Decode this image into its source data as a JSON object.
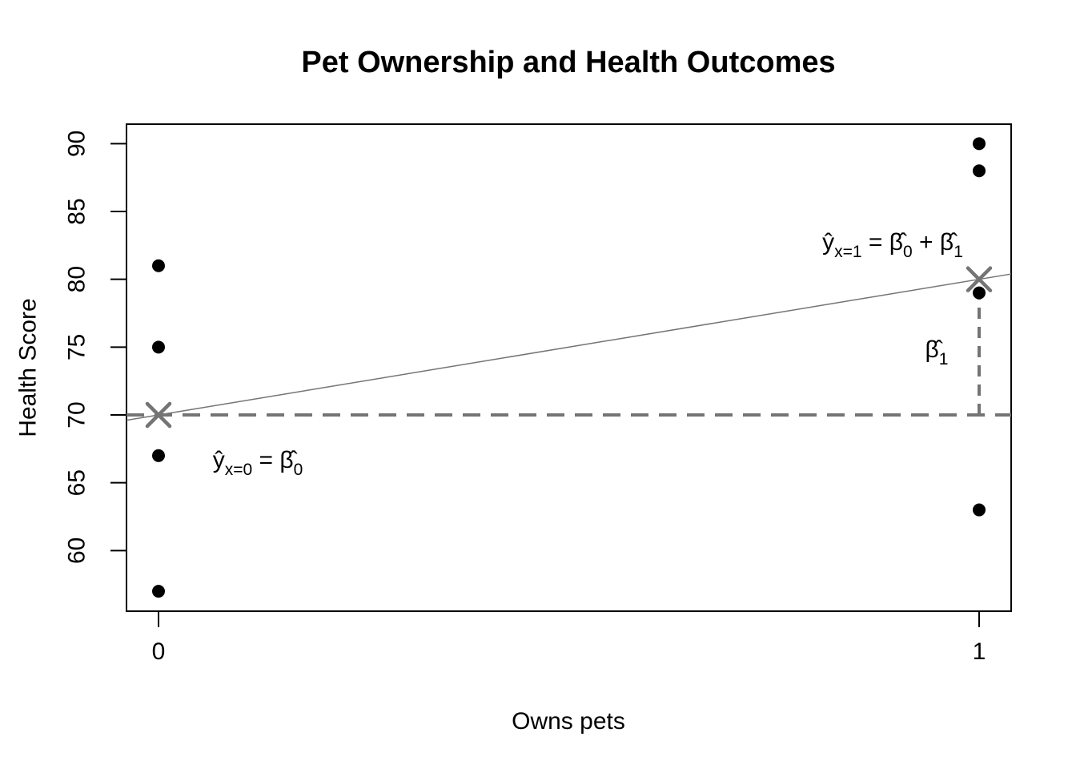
{
  "title": "Pet Ownership and Health Outcomes",
  "axes": {
    "x_label": "Owns pets",
    "y_label": "Health Score"
  },
  "chart_data": {
    "type": "scatter",
    "title": "Pet Ownership and Health Outcomes",
    "xlabel": "Owns pets",
    "ylabel": "Health Score",
    "xlim": [
      -0.04,
      1.04
    ],
    "ylim": [
      55.5,
      91.4
    ],
    "x_ticks": [
      0,
      1
    ],
    "y_ticks": [
      60,
      65,
      70,
      75,
      80,
      85,
      90
    ],
    "grid": "off",
    "points": [
      {
        "x": 0,
        "y": 81
      },
      {
        "x": 0,
        "y": 75
      },
      {
        "x": 0,
        "y": 67
      },
      {
        "x": 0,
        "y": 57
      },
      {
        "x": 1,
        "y": 90
      },
      {
        "x": 1,
        "y": 88
      },
      {
        "x": 1,
        "y": 79
      },
      {
        "x": 1,
        "y": 63
      }
    ],
    "group_means": [
      {
        "x": 0,
        "y": 70
      },
      {
        "x": 1,
        "y": 80
      }
    ],
    "fit_line": {
      "intercept": 70,
      "slope": 10
    },
    "reference_lines": {
      "horizontal_dashed": {
        "y": 70
      },
      "vertical_dashed": {
        "x": 1,
        "from": 70,
        "to": 80
      }
    },
    "colors": {
      "points": "#000000",
      "gray": "#747474",
      "axis": "#000000"
    }
  },
  "annotations": {
    "mean0": {
      "lhs": "ŷ",
      "lhs_sub": "x=0",
      "eq": " = ",
      "rhs": "β̂",
      "rhs_sub": "0"
    },
    "mean1": {
      "lhs": "ŷ",
      "lhs_sub": "x=1",
      "eq": " = ",
      "t1": "β̂",
      "t1_sub": "0",
      "plus": " + ",
      "t2": "β̂",
      "t2_sub": "1"
    },
    "slope": {
      "sym": "β̂",
      "sub": "1"
    }
  }
}
